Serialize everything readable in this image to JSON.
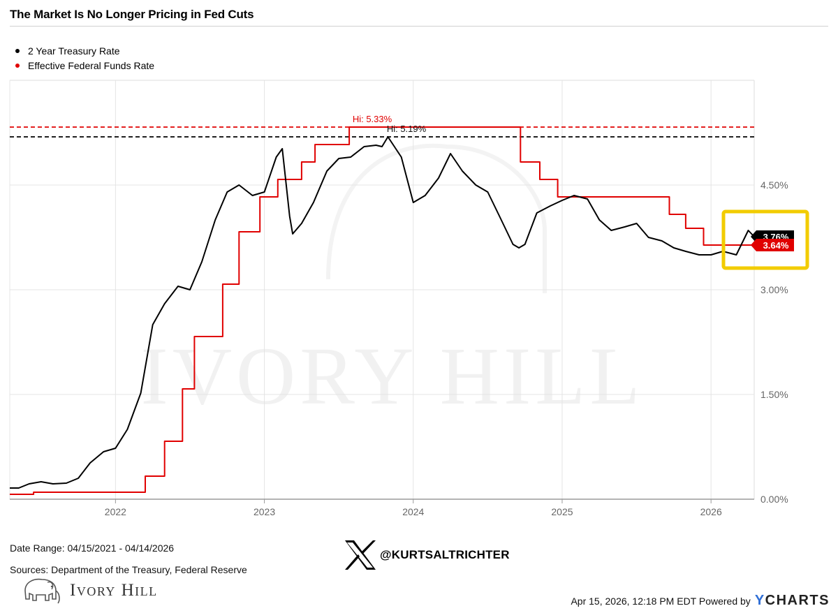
{
  "title": "The Market Is No Longer Pricing in Fed Cuts",
  "legend": [
    {
      "label": "2 Year Treasury Rate",
      "color": "#000000"
    },
    {
      "label": "Effective Federal Funds Rate",
      "color": "#e00000"
    }
  ],
  "watermark": "IVORY HILL",
  "footer": {
    "date_range": "Date Range: 04/15/2021 - 04/14/2026",
    "sources": "Sources: Department of the Treasury, Federal Reserve",
    "handle": "@KURTSALTRICHTER",
    "logo_text": "Ivory Hill",
    "timestamp": "Apr 15, 2026, 12:18 PM EDT Powered by",
    "brand_y": "Y",
    "brand_rest": "CHARTS"
  },
  "chart_data": {
    "type": "line",
    "title": "The Market Is No Longer Pricing in Fed Cuts",
    "x_range": [
      2021.29,
      2026.29
    ],
    "ylim": [
      0,
      6
    ],
    "x_ticks": [
      {
        "value": 2022,
        "label": "2022"
      },
      {
        "value": 2023,
        "label": "2023"
      },
      {
        "value": 2024,
        "label": "2024"
      },
      {
        "value": 2025,
        "label": "2025"
      },
      {
        "value": 2026,
        "label": "2026"
      }
    ],
    "y_ticks": [
      {
        "value": 0,
        "label": "0.00%"
      },
      {
        "value": 1.5,
        "label": "1.50%"
      },
      {
        "value": 3,
        "label": "3.00%"
      },
      {
        "value": 4.5,
        "label": "4.50%"
      }
    ],
    "series": [
      {
        "name": "2 Year Treasury Rate",
        "color": "#000000",
        "high": {
          "value": 5.19,
          "label": "Hi: 5.19%"
        },
        "last": {
          "value": 3.76,
          "label": "3.76%"
        },
        "x": [
          2021.29,
          2021.35,
          2021.42,
          2021.5,
          2021.58,
          2021.67,
          2021.75,
          2021.83,
          2021.92,
          2022.0,
          2022.08,
          2022.17,
          2022.25,
          2022.33,
          2022.42,
          2022.5,
          2022.58,
          2022.67,
          2022.75,
          2022.83,
          2022.92,
          2023.0,
          2023.08,
          2023.12,
          2023.17,
          2023.19,
          2023.25,
          2023.33,
          2023.42,
          2023.5,
          2023.58,
          2023.67,
          2023.75,
          2023.79,
          2023.83,
          2023.92,
          2024.0,
          2024.08,
          2024.17,
          2024.25,
          2024.33,
          2024.42,
          2024.5,
          2024.58,
          2024.67,
          2024.71,
          2024.75,
          2024.83,
          2024.92,
          2025.0,
          2025.08,
          2025.17,
          2025.25,
          2025.33,
          2025.42,
          2025.5,
          2025.58,
          2025.67,
          2025.75,
          2025.83,
          2025.92,
          2026.0,
          2026.08,
          2026.17,
          2026.25,
          2026.29
        ],
        "values": [
          0.16,
          0.16,
          0.22,
          0.25,
          0.22,
          0.23,
          0.3,
          0.52,
          0.68,
          0.73,
          1.0,
          1.52,
          2.5,
          2.8,
          3.05,
          3.0,
          3.4,
          4.0,
          4.4,
          4.5,
          4.35,
          4.4,
          4.9,
          5.02,
          4.05,
          3.8,
          3.95,
          4.25,
          4.7,
          4.88,
          4.9,
          5.05,
          5.07,
          5.05,
          5.19,
          4.9,
          4.25,
          4.35,
          4.6,
          4.95,
          4.7,
          4.5,
          4.4,
          4.05,
          3.65,
          3.6,
          3.65,
          4.1,
          4.2,
          4.28,
          4.35,
          4.3,
          4.0,
          3.85,
          3.9,
          3.95,
          3.75,
          3.7,
          3.6,
          3.55,
          3.5,
          3.5,
          3.55,
          3.5,
          3.85,
          3.76
        ]
      },
      {
        "name": "Effective Federal Funds Rate",
        "color": "#e00000",
        "high": {
          "value": 5.33,
          "label": "Hi: 5.33%"
        },
        "last": {
          "value": 3.64,
          "label": "3.64%"
        },
        "x": [
          2021.29,
          2021.45,
          2021.45,
          2022.2,
          2022.2,
          2022.33,
          2022.33,
          2022.45,
          2022.45,
          2022.53,
          2022.53,
          2022.72,
          2022.72,
          2022.83,
          2022.83,
          2022.97,
          2022.97,
          2023.09,
          2023.09,
          2023.25,
          2023.25,
          2023.34,
          2023.34,
          2023.57,
          2023.57,
          2024.72,
          2024.72,
          2024.85,
          2024.85,
          2024.97,
          2024.97,
          2025.72,
          2025.72,
          2025.83,
          2025.83,
          2025.95,
          2025.95,
          2026.29
        ],
        "values": [
          0.07,
          0.07,
          0.1,
          0.1,
          0.33,
          0.33,
          0.83,
          0.83,
          1.58,
          1.58,
          2.33,
          2.33,
          3.08,
          3.08,
          3.83,
          3.83,
          4.33,
          4.33,
          4.58,
          4.58,
          4.83,
          4.83,
          5.08,
          5.08,
          5.33,
          5.33,
          4.83,
          4.83,
          4.58,
          4.58,
          4.33,
          4.33,
          4.08,
          4.08,
          3.88,
          3.88,
          3.64,
          3.64
        ]
      }
    ],
    "highlight": "last values boxed in yellow"
  }
}
